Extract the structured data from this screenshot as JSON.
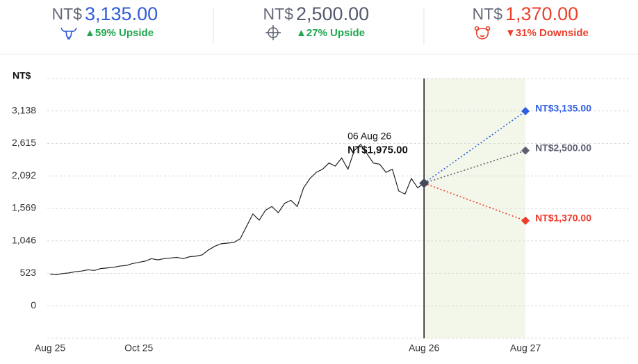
{
  "header": [
    {
      "currency": "NT$",
      "price": "3,135.00",
      "change": "▲59% Upside",
      "color": "#2f5bd8",
      "change_color": "#1ea64c"
    },
    {
      "currency": "NT$",
      "price": "2,500.00",
      "change": "▲27% Upside",
      "color": "#555a6c",
      "change_color": "#1ea64c"
    },
    {
      "currency": "NT$",
      "price": "1,370.00",
      "change": "▼31% Downside",
      "color": "#ea3f2b",
      "change_color": "#ea3f2b"
    }
  ],
  "chart_data": {
    "type": "line",
    "y_label": "NT$",
    "color": "#222222",
    "values": [
      510,
      500,
      520,
      530,
      550,
      560,
      580,
      570,
      600,
      610,
      620,
      640,
      650,
      680,
      700,
      720,
      760,
      740,
      760,
      770,
      780,
      760,
      790,
      800,
      820,
      900,
      960,
      1000,
      1010,
      1020,
      1080,
      1280,
      1480,
      1380,
      1540,
      1600,
      1500,
      1650,
      1700,
      1600,
      1900,
      2050,
      2150,
      2200,
      2300,
      2250,
      2380,
      2200,
      2500,
      2600,
      2450,
      2300,
      2280,
      2150,
      2200,
      1850,
      1800,
      2050,
      1900,
      1975
    ],
    "xlim": [
      0,
      91
    ],
    "xticks": [
      {
        "value": 0,
        "label": "Aug 25"
      },
      {
        "value": 14,
        "label": "Oct 25"
      },
      {
        "value": 59,
        "label": "Aug 26"
      },
      {
        "value": 75,
        "label": "Aug 27"
      }
    ],
    "ylim": [
      -523,
      3661
    ],
    "yticks": [
      0,
      523,
      {
        "value": 1046,
        "label": "1,046"
      },
      {
        "value": 1569,
        "label": "1,569"
      },
      {
        "value": 2092,
        "label": "2,092"
      },
      {
        "value": 2615,
        "label": "2,615"
      },
      {
        "value": 3138,
        "label": "3,138"
      }
    ],
    "grid": true,
    "tooltip": {
      "date": "06 Aug 26",
      "value_label": "NT$1,975.00"
    },
    "forecast": {
      "shade": "#f3f7ea",
      "series": [
        {
          "value": 3135,
          "value_label": "NT$3,135.00",
          "color": "#2f5fe0"
        },
        {
          "value": 2500,
          "value_label": "NT$2,500.00",
          "color": "#5c6070"
        },
        {
          "value": 1370,
          "value_label": "NT$1,370.00",
          "color": "#ef3b2a"
        }
      ]
    }
  }
}
